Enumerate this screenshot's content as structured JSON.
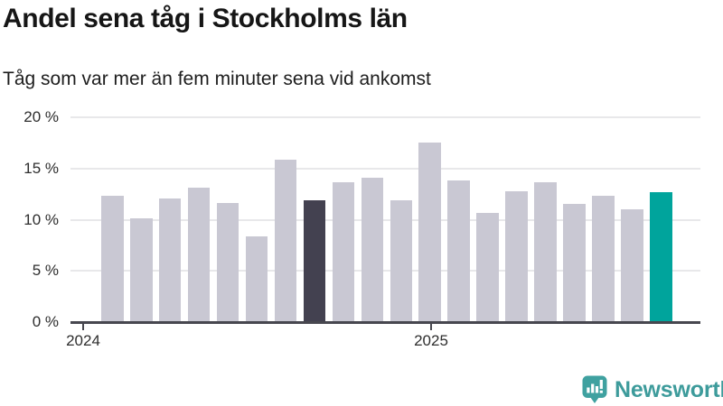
{
  "header": {
    "title": "Andel sena tåg i Stockholms län",
    "subtitle": "Tåg som var mer än fem minuter sena vid ankomst"
  },
  "chart_data": {
    "type": "bar",
    "title": "Andel sena tåg i Stockholms län",
    "subtitle": "Tåg som var mer än fem minuter sena vid ankomst",
    "unit": "%",
    "values": [
      12.3,
      10.1,
      12.1,
      13.1,
      11.6,
      8.4,
      15.9,
      11.9,
      13.7,
      14.1,
      11.9,
      17.5,
      13.8,
      10.7,
      12.8,
      13.7,
      11.5,
      12.3,
      11.0,
      12.7
    ],
    "ylim": [
      0,
      20
    ],
    "y_ticks": [
      0,
      5,
      10,
      15,
      20
    ],
    "y_tick_labels": [
      "0 %",
      "5 %",
      "10 %",
      "15 %",
      "20 %"
    ],
    "x_tick_labels": [
      "2024",
      "2025"
    ],
    "grid": true,
    "legend": "none",
    "highlight_dark_index": 7,
    "highlight_accent_index": 19,
    "colors": {
      "bar_default": "#c9c8d3",
      "bar_dark": "#434150",
      "bar_accent": "#00a49c",
      "gridline": "#e8e8ea",
      "axis": "#47474f"
    }
  },
  "branding": {
    "logo_text": "Newsworthy",
    "logo_color": "#3d9b9b",
    "logo_icon": "newsworthy-speech-bubble-chart-icon"
  }
}
